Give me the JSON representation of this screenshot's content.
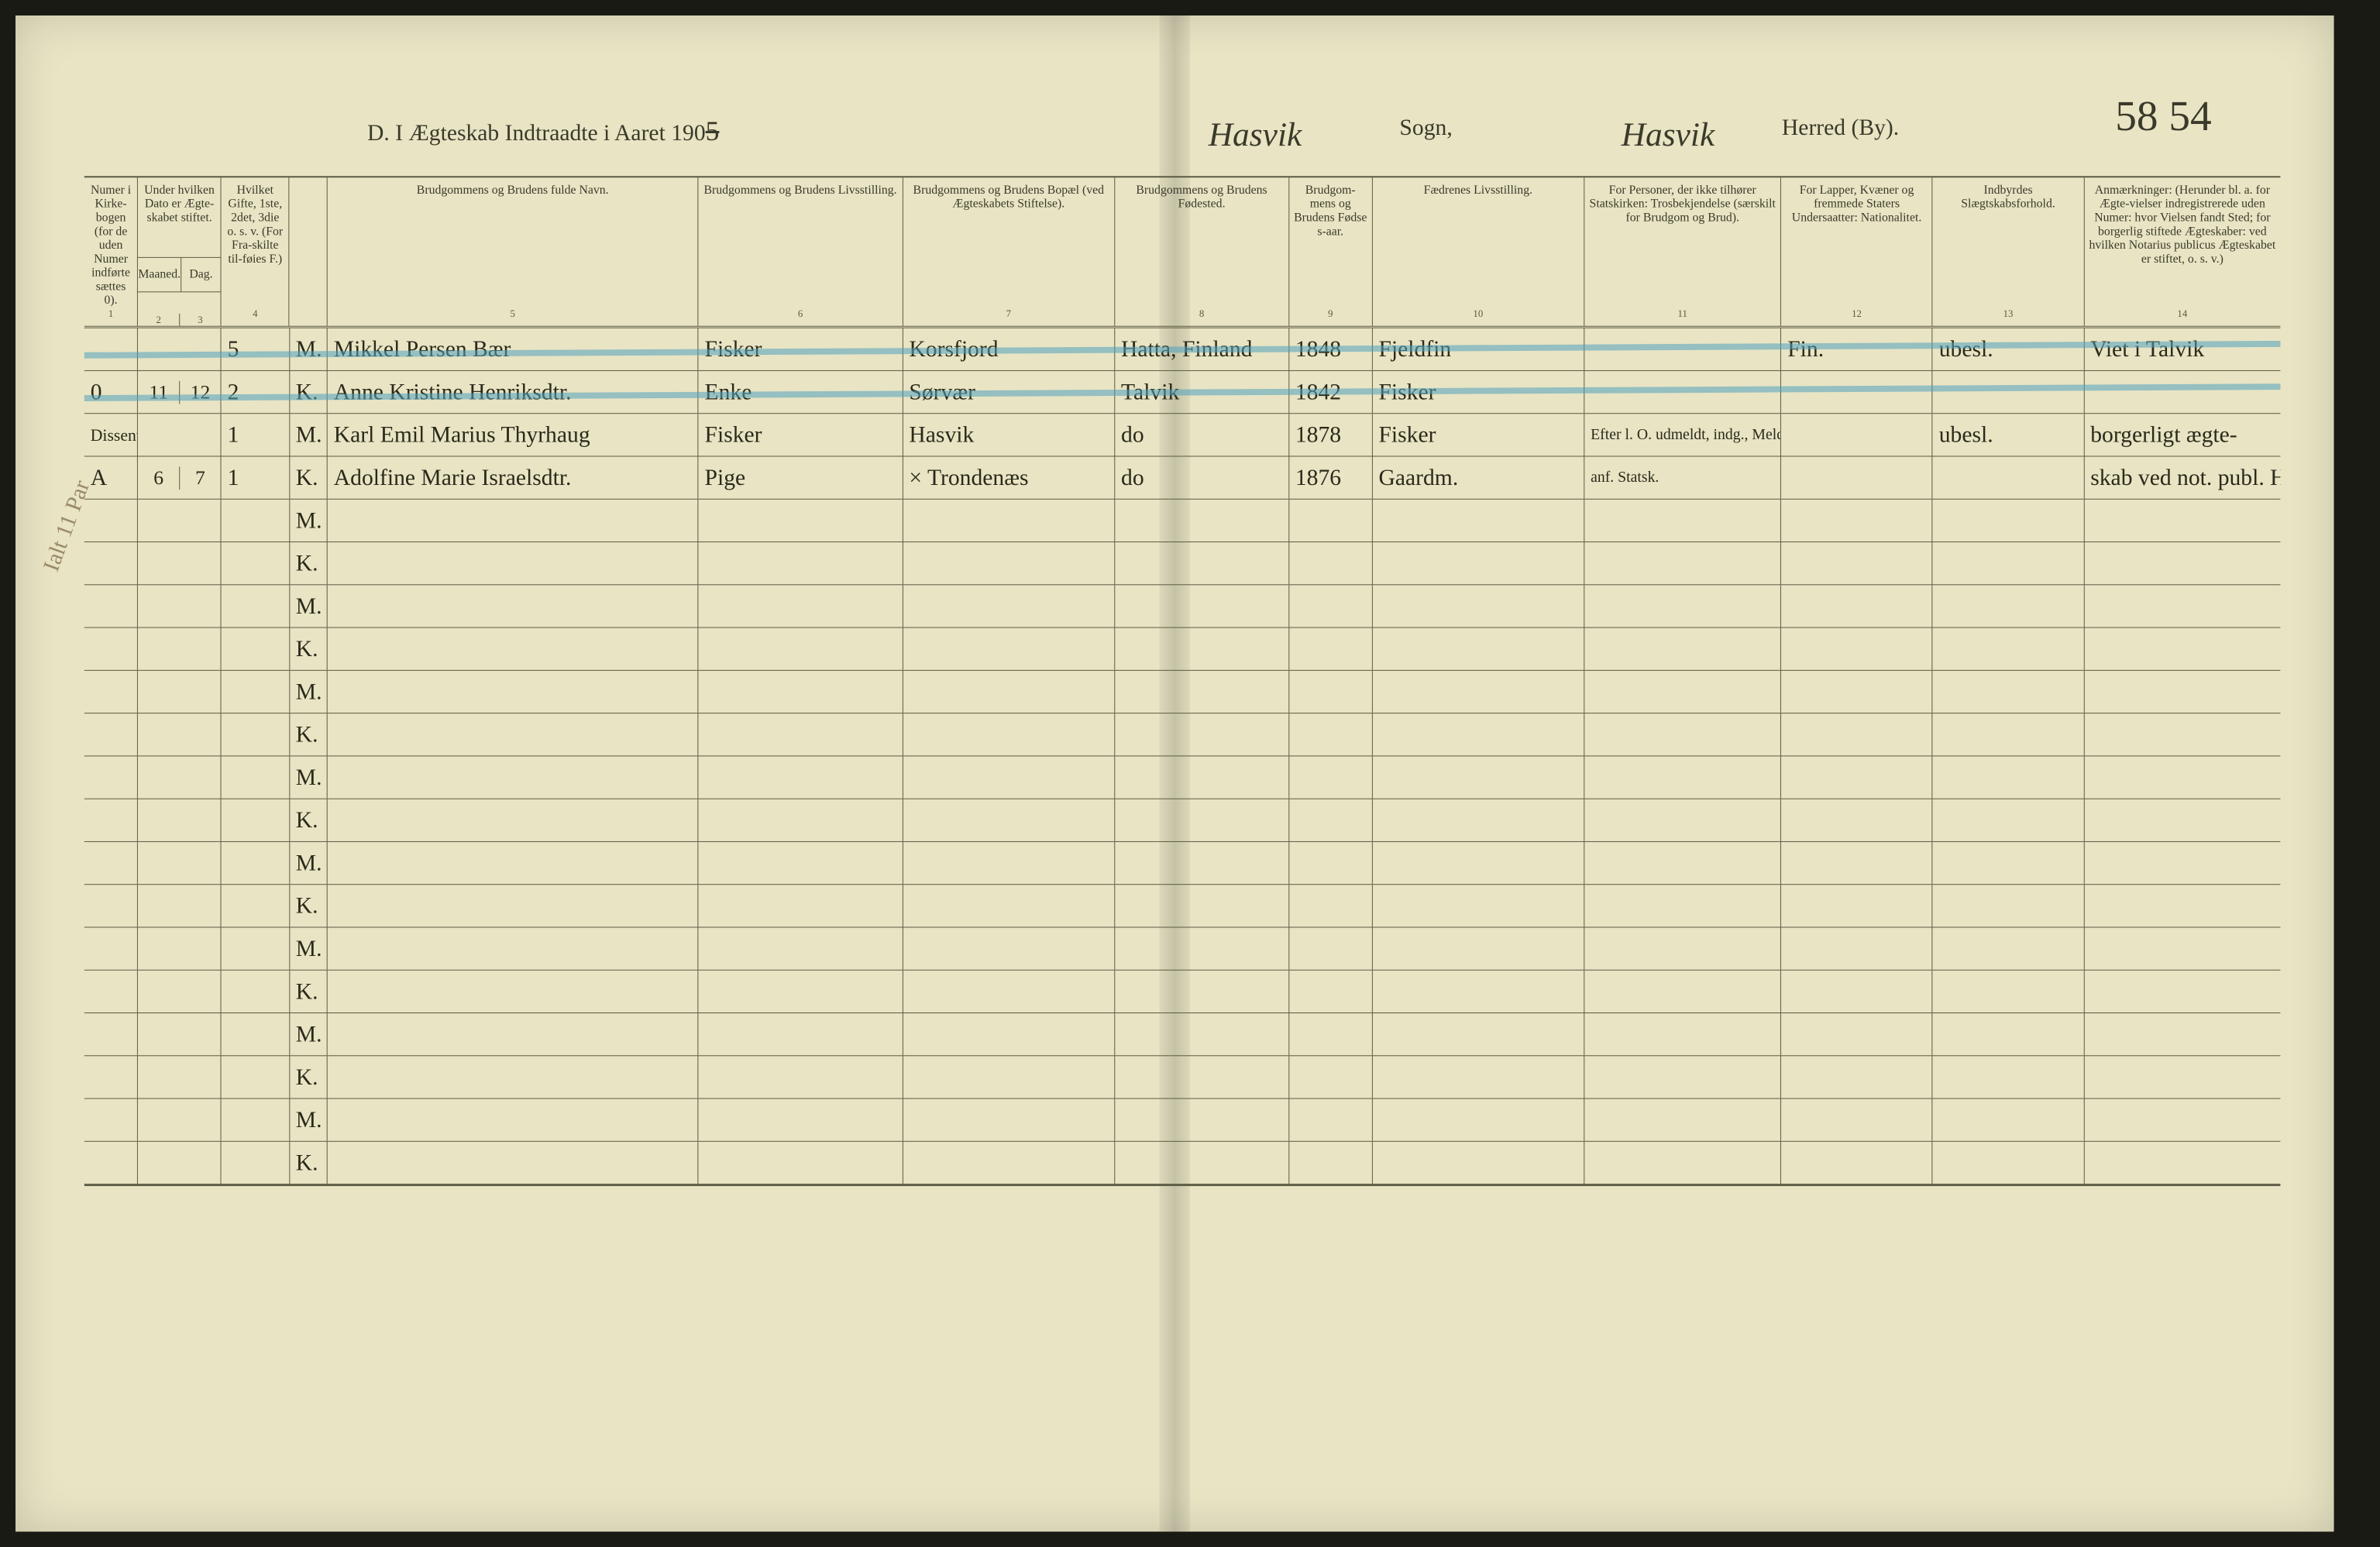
{
  "page_number": "58 54",
  "title_prefix": "D. I Ægteskab Indtraadte i Aaret 190",
  "title_year_suffix": "5",
  "sogn": "Hasvik",
  "sogn_label": "Sogn,",
  "herred": "Hasvik",
  "herred_label": "Herred (By).",
  "margin_note": "Ialt 11 Par",
  "columns": {
    "c1": "Numer i Kirke-bogen (for de uden Numer indførte sættes 0).",
    "c2": "Under hvilken Dato er Ægte-skabet stiftet.",
    "c2a": "Maaned.",
    "c2b": "Dag.",
    "c3": "Hvilket Gifte, 1ste, 2det, 3die o. s. v. (For Fra-skilte til-føies F.)",
    "c5": "Brudgommens og Brudens fulde Navn.",
    "c6": "Brudgommens og Brudens Livsstilling.",
    "c7": "Brudgommens og Brudens Bopæl (ved Ægteskabets Stiftelse).",
    "c8": "Brudgommens og Brudens Fødested.",
    "c9": "Brudgom-mens og Brudens Fødse s-aar.",
    "c10": "Fædrenes Livsstilling.",
    "c11": "For Personer, der ikke tilhører Statskirken: Trosbekjendelse (særskilt for Brudgom og Brud).",
    "c12": "For Lapper, Kvæner og fremmede Staters Undersaatter: Nationalitet.",
    "c13": "Indbyrdes Slægtskabsforhold.",
    "c14": "Anmærkninger: (Herunder bl. a. for Ægte-vielser indregistrerede uden Numer: hvor Vielsen fandt Sted; for borgerlig stiftede Ægteskaber: ved hvilken Notarius publicus Ægteskabet er stiftet, o. s. v.)"
  },
  "col_numbers": [
    "1",
    "2",
    "3",
    "4",
    "5",
    "6",
    "7",
    "8",
    "9",
    "10",
    "11",
    "12",
    "13",
    "14"
  ],
  "rows": [
    {
      "strike": true,
      "num": "",
      "maaned": "",
      "dag": "",
      "gifte": "5",
      "mk": "M.",
      "name": "Mikkel Persen Bær",
      "livsstilling": "Fisker",
      "bopael": "Korsfjord",
      "fodested": "Hatta, Finland",
      "aar": "1848",
      "faedrenes": "Fjeldfin",
      "tros": "",
      "nat": "Fin.",
      "slaegt": "ubesl.",
      "anm": "Viet i Talvik"
    },
    {
      "strike": true,
      "num": "0",
      "maaned": "11",
      "dag": "12",
      "gifte": "2",
      "mk": "K.",
      "name": "Anne Kristine Henriksdtr.",
      "livsstilling": "Enke",
      "bopael": "Sørvær",
      "fodested": "Talvik",
      "aar": "1842",
      "faedrenes": "Fisker",
      "tros": "",
      "nat": "",
      "slaegt": "",
      "anm": ""
    },
    {
      "strike": false,
      "num_purple": "Dissenter",
      "num": "",
      "maaned": "",
      "dag": "",
      "gifte": "1",
      "mk": "M.",
      "name": "Karl Emil Marius Thyrhaug",
      "livsstilling": "Fisker",
      "bopael": "Hasvik",
      "fodested": "do",
      "aar": "1878",
      "faedrenes": "Fisker",
      "tros": "Efter l. O. udmeldt, indg., Meld. igjen ifm borg. borg. Viels",
      "nat": "",
      "slaegt": "ubesl.",
      "anm": "borgerligt ægte-"
    },
    {
      "strike": false,
      "num": "A",
      "maaned": "6",
      "dag": "7",
      "gifte": "1",
      "mk": "K.",
      "name": "Adolfine Marie Israelsdtr.",
      "livsstilling": "Pige",
      "bopael": "× Trondenæs",
      "fodested": "do",
      "aar": "1876",
      "faedrenes": "Gaardm.",
      "tros": "anf. Statsk.",
      "nat": "",
      "slaegt": "",
      "anm": "skab ved not. publ. Hammerfest"
    }
  ],
  "blank_pairs": 8
}
